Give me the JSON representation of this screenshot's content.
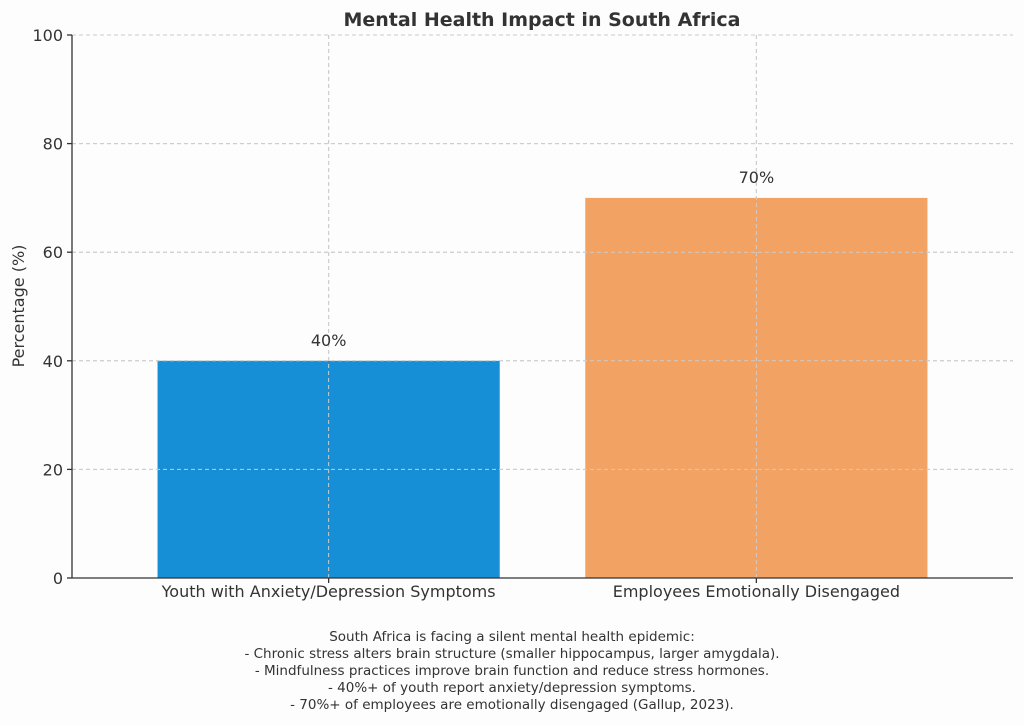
{
  "chart_data": {
    "type": "bar",
    "title": "Mental Health Impact in South Africa",
    "xlabel": "",
    "ylabel": "Percentage (%)",
    "categories": [
      "Youth with Anxiety/Depression Symptoms",
      "Employees Emotionally Disengaged"
    ],
    "values": [
      40,
      70
    ],
    "data_labels": [
      "40%",
      "70%"
    ],
    "colors": [
      "#168fd6",
      "#f2a262"
    ],
    "ylim": [
      0,
      100
    ],
    "yticks": [
      0,
      20,
      40,
      60,
      80,
      100
    ],
    "grid": true
  },
  "footnote": {
    "lines": [
      "South Africa is facing a silent mental health epidemic:",
      "- Chronic stress alters brain structure (smaller hippocampus, larger amygdala).",
      "- Mindfulness practices improve brain function and reduce stress hormones.",
      "- 40%+ of youth report anxiety/depression symptoms.",
      "- 70%+ of employees are emotionally disengaged (Gallup, 2023)."
    ]
  }
}
